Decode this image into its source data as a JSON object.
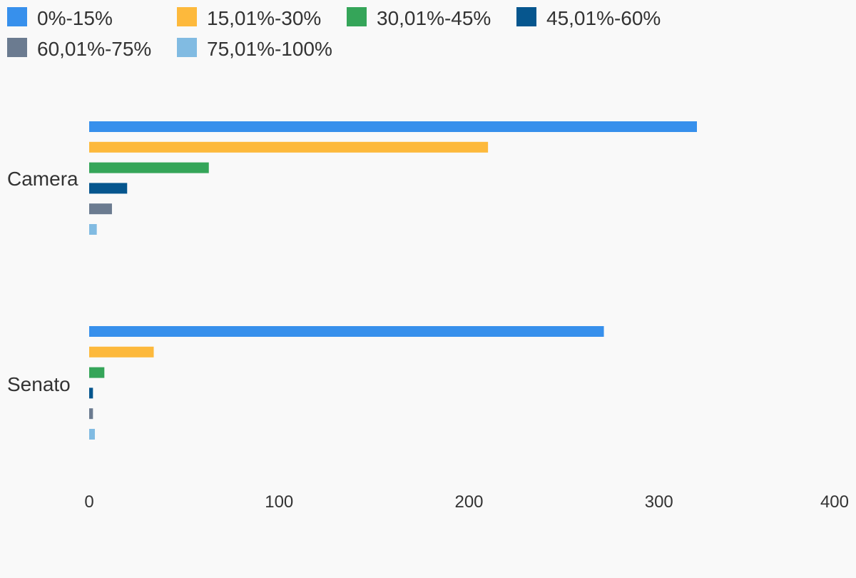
{
  "chart_data": {
    "type": "bar",
    "orientation": "horizontal",
    "categories": [
      "Camera",
      "Senato"
    ],
    "series": [
      {
        "name": "0%-15%",
        "color": "#3790ec",
        "values": [
          320,
          271
        ]
      },
      {
        "name": "15,01%-30%",
        "color": "#fdb93c",
        "values": [
          210,
          34
        ]
      },
      {
        "name": "30,01%-45%",
        "color": "#35a559",
        "values": [
          63,
          8
        ]
      },
      {
        "name": "45,01%-60%",
        "color": "#06568e",
        "values": [
          20,
          2
        ]
      },
      {
        "name": "60,01%-75%",
        "color": "#6b7b90",
        "values": [
          12,
          2
        ]
      },
      {
        "name": "75,01%-100%",
        "color": "#81bbe2",
        "values": [
          4,
          3
        ]
      }
    ],
    "x_ticks": [
      "0",
      "100",
      "200",
      "300",
      "400"
    ],
    "xlim": [
      0,
      400
    ],
    "title": "",
    "xlabel": "",
    "ylabel": "",
    "grid": false,
    "legend_position": "top-left"
  }
}
